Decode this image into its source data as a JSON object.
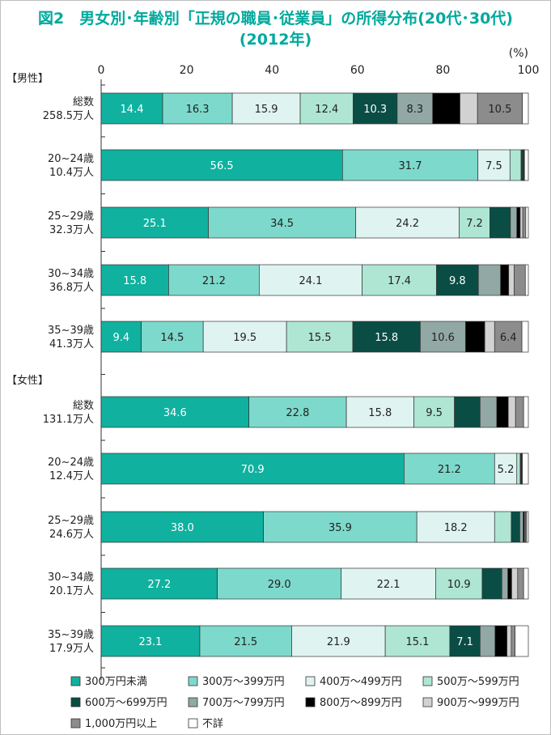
{
  "title_line1": "図2　男女別･年齢別「正規の職員･従業員」の所得分布(20代･30代)",
  "title_line2": "(2012年)",
  "chart_data": {
    "type": "bar",
    "stacked": true,
    "orientation": "horizontal",
    "unit_label": "(%)",
    "xlim": [
      0,
      100
    ],
    "xticks": [
      "0",
      "20",
      "40",
      "60",
      "80",
      "100"
    ],
    "grid": false,
    "legend_position": "bottom",
    "groups": [
      {
        "label": "【男性】",
        "rows": [
          {
            "label1": "総数",
            "label2": "258.5万人",
            "values": [
              14.4,
              16.3,
              15.9,
              12.4,
              10.3,
              8.3,
              6.4,
              4.1,
              10.5,
              1.4
            ],
            "labels": [
              "14.4",
              "16.3",
              "15.9",
              "12.4",
              "10.3",
              "8.3",
              "",
              "",
              "10.5",
              ""
            ]
          },
          {
            "label1": "20~24歳",
            "label2": "10.4万人",
            "values": [
              56.5,
              31.7,
              7.5,
              2.6,
              0.4,
              0.1,
              0.1,
              0.1,
              0.1,
              0.9
            ],
            "labels": [
              "56.5",
              "31.7",
              "7.5",
              "",
              "",
              "",
              "",
              "",
              "",
              ""
            ]
          },
          {
            "label1": "25~29歳",
            "label2": "32.3万人",
            "values": [
              25.1,
              34.5,
              24.2,
              7.2,
              4.8,
              1.5,
              0.8,
              0.6,
              0.7,
              0.6
            ],
            "labels": [
              "25.1",
              "34.5",
              "24.2",
              "7.2",
              "",
              "",
              "",
              "",
              "",
              ""
            ]
          },
          {
            "label1": "30~34歳",
            "label2": "36.8万人",
            "values": [
              15.8,
              21.2,
              24.1,
              17.4,
              9.8,
              5.2,
              1.9,
              1.3,
              2.6,
              0.7
            ],
            "labels": [
              "15.8",
              "21.2",
              "24.1",
              "17.4",
              "9.8",
              "",
              "",
              "",
              "",
              ""
            ]
          },
          {
            "label1": "35~39歳",
            "label2": "41.3万人",
            "values": [
              9.4,
              14.5,
              19.5,
              15.5,
              15.8,
              10.6,
              4.5,
              2.3,
              6.4,
              1.5
            ],
            "labels": [
              "9.4",
              "14.5",
              "19.5",
              "15.5",
              "15.8",
              "10.6",
              "",
              "",
              "6.4",
              ""
            ]
          }
        ]
      },
      {
        "label": "【女性】",
        "rows": [
          {
            "label1": "総数",
            "label2": "131.1万人",
            "values": [
              34.6,
              22.8,
              15.8,
              9.5,
              6.0,
              3.9,
              2.7,
              1.7,
              1.9,
              1.1
            ],
            "labels": [
              "34.6",
              "22.8",
              "15.8",
              "9.5",
              "",
              "",
              "",
              "",
              "",
              ""
            ]
          },
          {
            "label1": "20~24歳",
            "label2": "12.4万人",
            "values": [
              70.9,
              21.2,
              5.2,
              0.8,
              0.1,
              0.1,
              0.1,
              0.1,
              0.1,
              1.4
            ],
            "labels": [
              "70.9",
              "21.2",
              "5.2",
              "",
              "",
              "",
              "",
              "",
              "",
              ""
            ]
          },
          {
            "label1": "25~29歳",
            "label2": "24.6万人",
            "values": [
              38.0,
              35.9,
              18.2,
              3.9,
              2.0,
              0.8,
              0.3,
              0.2,
              0.3,
              0.4
            ],
            "labels": [
              "38.0",
              "35.9",
              "18.2",
              "",
              "",
              "",
              "",
              "",
              "",
              ""
            ]
          },
          {
            "label1": "30~34歳",
            "label2": "20.1万人",
            "values": [
              27.2,
              29.0,
              22.1,
              10.9,
              4.6,
              1.4,
              0.9,
              1.4,
              1.4,
              1.1
            ],
            "labels": [
              "27.2",
              "29.0",
              "22.1",
              "10.9",
              "",
              "",
              "",
              "",
              "",
              ""
            ]
          },
          {
            "label1": "35~39歳",
            "label2": "17.9万人",
            "values": [
              23.1,
              21.5,
              21.9,
              15.1,
              7.1,
              3.5,
              2.8,
              1.0,
              0.9,
              3.1
            ],
            "labels": [
              "23.1",
              "21.5",
              "21.9",
              "15.1",
              "7.1",
              "",
              "",
              "",
              "",
              ""
            ]
          }
        ]
      }
    ],
    "series": [
      {
        "name": "300万円未満",
        "color": "#10b19f",
        "text_color": "#ffffff"
      },
      {
        "name": "300万～399万円",
        "color": "#7dd9cb",
        "text_color": "#222222"
      },
      {
        "name": "400万～499万円",
        "color": "#dff4f1",
        "text_color": "#222222"
      },
      {
        "name": "500万～599万円",
        "color": "#aee6d3",
        "text_color": "#222222"
      },
      {
        "name": "600万～699万円",
        "color": "#0a4d45",
        "text_color": "#ffffff"
      },
      {
        "name": "700万～799万円",
        "color": "#91a8a4",
        "text_color": "#222222"
      },
      {
        "name": "800万～899万円",
        "color": "#000000",
        "text_color": "#ffffff"
      },
      {
        "name": "900万～999万円",
        "color": "#d2d2d2",
        "text_color": "#222222"
      },
      {
        "name": "1,000万円以上",
        "color": "#8c8c8c",
        "text_color": "#222222"
      },
      {
        "name": "不詳",
        "color": "#ffffff",
        "text_color": "#222222"
      }
    ]
  }
}
